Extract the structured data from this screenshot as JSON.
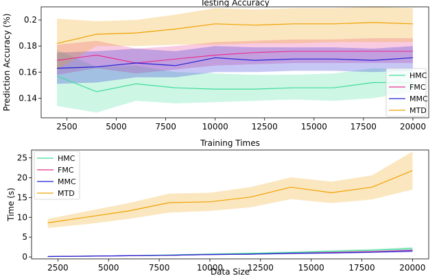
{
  "chart_data": [
    {
      "type": "line",
      "title": "Testing Accuracy",
      "xlabel": "",
      "ylabel": "Prediction Accuracy (%)",
      "xlim": [
        1200,
        20800
      ],
      "ylim": [
        0.125,
        0.21
      ],
      "xticks": [
        2500,
        5000,
        7500,
        10000,
        12500,
        15000,
        17500,
        20000
      ],
      "yticks": [
        0.14,
        0.16,
        0.18,
        0.2
      ],
      "x": [
        2000,
        4000,
        6000,
        8000,
        10000,
        12000,
        14000,
        16000,
        18000,
        20000
      ],
      "legend_position": "right",
      "series": [
        {
          "name": "HMC",
          "color": "#3ddc97",
          "values": [
            0.157,
            0.145,
            0.151,
            0.148,
            0.147,
            0.147,
            0.148,
            0.148,
            0.152,
            0.152
          ],
          "lower": [
            0.134,
            0.129,
            0.138,
            0.136,
            0.137,
            0.138,
            0.139,
            0.138,
            0.14,
            0.145
          ],
          "upper": [
            0.177,
            0.164,
            0.165,
            0.16,
            0.159,
            0.158,
            0.158,
            0.159,
            0.163,
            0.162
          ]
        },
        {
          "name": "FMC",
          "color": "#e8318f",
          "values": [
            0.169,
            0.173,
            0.167,
            0.17,
            0.173,
            0.175,
            0.176,
            0.176,
            0.176,
            0.176
          ],
          "lower": [
            0.158,
            0.163,
            0.159,
            0.162,
            0.165,
            0.166,
            0.167,
            0.167,
            0.167,
            0.167
          ],
          "upper": [
            0.181,
            0.184,
            0.178,
            0.18,
            0.183,
            0.184,
            0.185,
            0.185,
            0.186,
            0.186
          ]
        },
        {
          "name": "MMC",
          "color": "#1f1fd6",
          "values": [
            0.163,
            0.164,
            0.167,
            0.165,
            0.171,
            0.169,
            0.17,
            0.17,
            0.169,
            0.171
          ],
          "lower": [
            0.151,
            0.152,
            0.156,
            0.156,
            0.16,
            0.16,
            0.161,
            0.161,
            0.16,
            0.161
          ],
          "upper": [
            0.175,
            0.176,
            0.178,
            0.176,
            0.18,
            0.179,
            0.179,
            0.179,
            0.178,
            0.18
          ]
        },
        {
          "name": "MTD",
          "color": "#f0a000",
          "values": [
            0.182,
            0.189,
            0.19,
            0.193,
            0.197,
            0.196,
            0.197,
            0.197,
            0.198,
            0.197
          ],
          "lower": [
            0.162,
            0.18,
            0.18,
            0.181,
            0.181,
            0.182,
            0.182,
            0.183,
            0.183,
            0.183
          ],
          "upper": [
            0.201,
            0.199,
            0.2,
            0.204,
            0.209,
            0.208,
            0.209,
            0.209,
            0.21,
            0.209
          ]
        }
      ]
    },
    {
      "type": "line",
      "title": "Training Times",
      "xlabel": "Data Size",
      "ylabel": "Time (s)",
      "xlim": [
        1200,
        20800
      ],
      "ylim": [
        -0.5,
        27
      ],
      "xticks": [
        2500,
        5000,
        7500,
        10000,
        12500,
        15000,
        17500,
        20000
      ],
      "yticks": [
        0,
        5,
        10,
        15,
        20,
        25
      ],
      "x": [
        2000,
        4000,
        6000,
        8000,
        10000,
        12000,
        14000,
        16000,
        18000,
        20000
      ],
      "legend_position": "top-left",
      "series": [
        {
          "name": "HMC",
          "color": "#3ddc97",
          "values": [
            0.1,
            0.2,
            0.3,
            0.5,
            0.7,
            0.9,
            1.1,
            1.4,
            1.7,
            2.1
          ],
          "lower": [
            0.05,
            0.1,
            0.2,
            0.4,
            0.5,
            0.7,
            0.9,
            1.1,
            1.4,
            1.7
          ],
          "upper": [
            0.2,
            0.3,
            0.4,
            0.6,
            0.9,
            1.1,
            1.4,
            1.7,
            2.0,
            2.5
          ]
        },
        {
          "name": "FMC",
          "color": "#e8318f",
          "values": [
            0.1,
            0.2,
            0.3,
            0.4,
            0.6,
            0.7,
            0.9,
            1.1,
            1.3,
            1.6
          ],
          "lower": [
            0.05,
            0.1,
            0.2,
            0.3,
            0.5,
            0.6,
            0.7,
            0.9,
            1.1,
            1.3
          ],
          "upper": [
            0.2,
            0.3,
            0.4,
            0.5,
            0.7,
            0.9,
            1.1,
            1.3,
            1.6,
            1.9
          ]
        },
        {
          "name": "MMC",
          "color": "#1f1fd6",
          "values": [
            0.1,
            0.2,
            0.3,
            0.4,
            0.6,
            0.7,
            0.9,
            1.0,
            1.2,
            1.5
          ],
          "lower": [
            0.05,
            0.1,
            0.2,
            0.3,
            0.5,
            0.6,
            0.7,
            0.8,
            1.0,
            1.2
          ],
          "upper": [
            0.2,
            0.3,
            0.4,
            0.5,
            0.7,
            0.8,
            1.1,
            1.2,
            1.4,
            1.8
          ]
        },
        {
          "name": "MTD",
          "color": "#f0a000",
          "values": [
            8.6,
            10.1,
            11.6,
            13.7,
            13.9,
            15.1,
            17.6,
            16.2,
            17.6,
            21.8
          ],
          "lower": [
            7.3,
            8.3,
            9.6,
            11.2,
            11.6,
            12.5,
            14.6,
            13.6,
            14.5,
            17.0
          ],
          "upper": [
            9.6,
            11.6,
            13.6,
            16.0,
            16.2,
            17.6,
            20.1,
            19.0,
            20.6,
            26.6
          ]
        }
      ]
    }
  ]
}
